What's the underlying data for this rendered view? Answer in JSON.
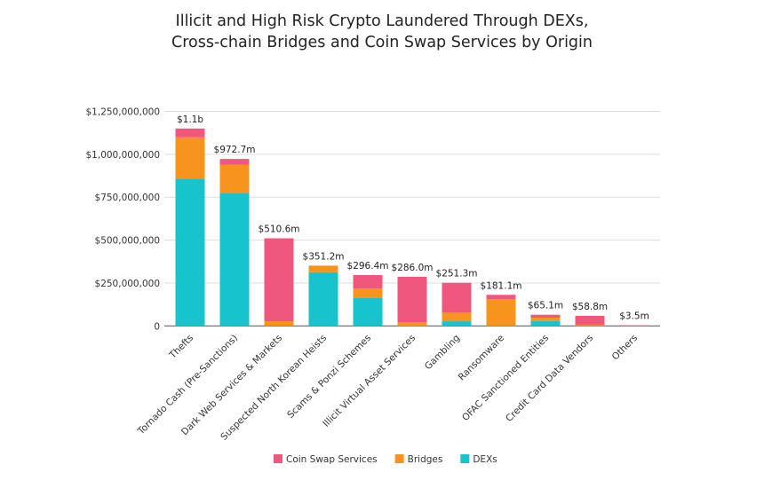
{
  "chart_data": {
    "type": "bar",
    "stacked": true,
    "title": "Illicit and High Risk Crypto Laundered Through DEXs,",
    "title_line2": "Cross-chain Bridges and Coin Swap Services by Origin",
    "xlabel": "",
    "ylabel": "",
    "ylim": [
      0,
      1250000000
    ],
    "yticks": [
      0,
      250000000,
      500000000,
      750000000,
      1000000000,
      1250000000
    ],
    "ytick_labels": [
      "0",
      "$250,000,000",
      "$500,000,000",
      "$750,000,000",
      "$1,000,000,000",
      "$1,250,000,000"
    ],
    "grid": true,
    "legend_position": "bottom",
    "categories": [
      "Thefts",
      "Tornado Cash (Pre-Sanctions)",
      "Dark Web Services & Markets",
      "Suspected North Korean Heists",
      "Scams & Ponzi Schemes",
      "Illicit Virtual Asset Services",
      "Gambling",
      "Ransomware",
      "OFAC Sanctioned Entities",
      "Credit Card Data Vendors",
      "Others"
    ],
    "total_labels": [
      "$1.1b",
      "$972.7m",
      "$510.6m",
      "$351.2m",
      "$296.4m",
      "$286.0m",
      "$251.3m",
      "$181.1m",
      "$65.1m",
      "$58.8m",
      "$3.5m"
    ],
    "series": [
      {
        "name": "DEXs",
        "color": "#17c3cc",
        "values": [
          858000000,
          775000000,
          0,
          313000000,
          162000000,
          0,
          27000000,
          0,
          29000000,
          0,
          0
        ]
      },
      {
        "name": "Bridges",
        "color": "#f7941d",
        "values": [
          241000000,
          165000000,
          27500000,
          38200000,
          55000000,
          20000000,
          50000000,
          155000000,
          19000000,
          5000000,
          0
        ]
      },
      {
        "name": "Coin Swap Services",
        "color": "#f0577f",
        "values": [
          51000000,
          32700000,
          483100000,
          0,
          79400000,
          266000000,
          174300000,
          26100000,
          17100000,
          53800000,
          3500000
        ]
      }
    ],
    "legend_order": [
      "Coin Swap Services",
      "Bridges",
      "DEXs"
    ]
  }
}
